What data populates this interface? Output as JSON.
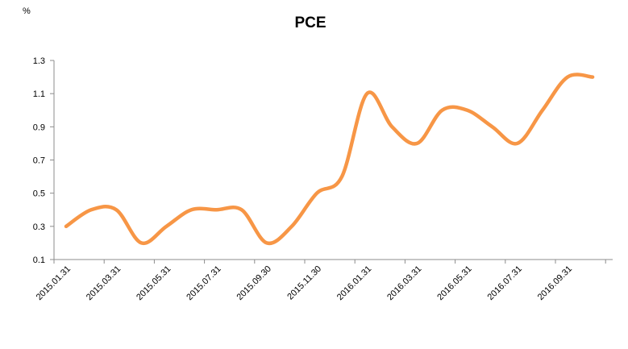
{
  "chart_data": {
    "type": "line",
    "title": "PCE",
    "ylabel": "%",
    "xlabel": "",
    "ylim": [
      0.1,
      1.3
    ],
    "yticks": [
      "0.1",
      "0.3",
      "0.5",
      "0.7",
      "0.9",
      "1.1",
      "1.3"
    ],
    "x": [
      "2015.01.31",
      "2015.02.28",
      "2015.03.31",
      "2015.04.30",
      "2015.05.31",
      "2015.06.30",
      "2015.07.31",
      "2015.08.31",
      "2015.09.30",
      "2015.10.31",
      "2015.11.30",
      "2015.12.31",
      "2016.01.31",
      "2016.02.29",
      "2016.03.31",
      "2016.04.30",
      "2016.05.31",
      "2016.06.30",
      "2016.07.31",
      "2016.08.31",
      "2016.09.31",
      "2016.10.31"
    ],
    "xtick_labels": [
      "2015.01.31",
      "2015.03.31",
      "2015.05.31",
      "2015.07.31",
      "2015.09.30",
      "2015.11.30",
      "2016.01.31",
      "2016.03.31",
      "2016.05.31",
      "2016.07.31",
      "2016.09.31"
    ],
    "series": [
      {
        "values": [
          0.3,
          0.4,
          0.4,
          0.2,
          0.3,
          0.4,
          0.4,
          0.4,
          0.2,
          0.3,
          0.5,
          0.6,
          1.1,
          0.9,
          0.8,
          1.0,
          1.0,
          0.9,
          0.8,
          1.0,
          1.2,
          1.2
        ]
      }
    ],
    "line_color": "#F79646",
    "grid": false
  }
}
